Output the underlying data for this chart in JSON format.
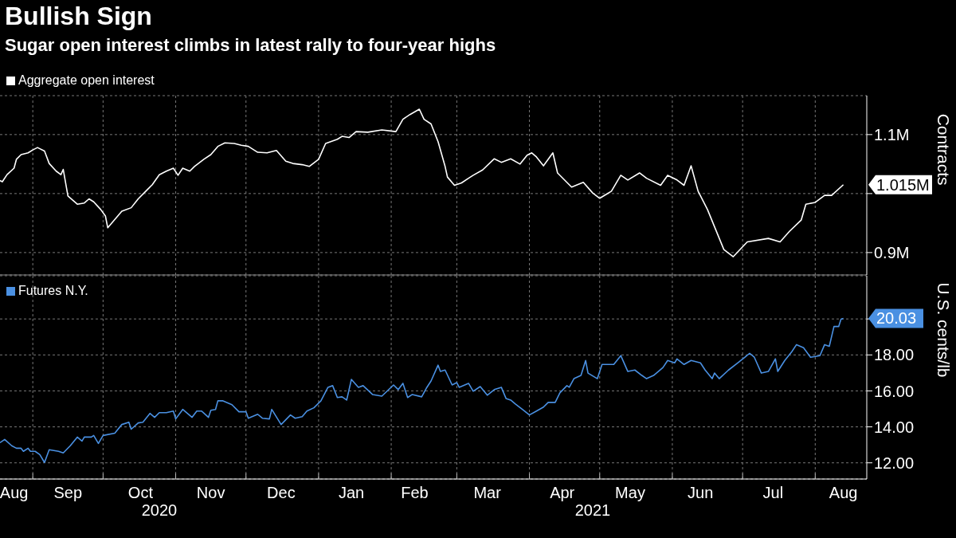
{
  "chart_data": [
    {
      "type": "line",
      "title": "Bullish Sign",
      "subtitle": "Sugar open interest climbs in latest rally to four-year highs",
      "ylabel": "Contracts",
      "legend": "top left",
      "grid": true,
      "tick_labels": "y",
      "xlim": [
        "2020-08-18",
        "2021-08-23"
      ],
      "xticks": [
        {
          "value": "2020-09-01",
          "label": null
        },
        {
          "value": "2020-10-01",
          "label": null
        },
        {
          "value": "2020-11-01",
          "label": null
        },
        {
          "value": "2020-12-01",
          "label": null
        },
        {
          "value": "2021-01-01",
          "label": null
        },
        {
          "value": "2021-02-01",
          "label": null
        },
        {
          "value": "2021-03-01",
          "label": null
        },
        {
          "value": "2021-04-01",
          "label": null
        },
        {
          "value": "2021-05-01",
          "label": null
        },
        {
          "value": "2021-06-01",
          "label": null
        },
        {
          "value": "2021-07-01",
          "label": null
        },
        {
          "value": "2021-08-01",
          "label": null
        }
      ],
      "ylim": [
        862000,
        1166000
      ],
      "yticks": [
        {
          "value": 900000,
          "label": "0.9M"
        },
        {
          "value": 1000000,
          "label": null
        },
        {
          "value": 1100000,
          "label": "1.1M"
        }
      ],
      "annotations": [
        {
          "text": "1.015M",
          "x": "2021-08-13",
          "y": 1015000
        }
      ],
      "series": [
        {
          "name": "Aggregate open interest",
          "color": "#ffffff",
          "x": [
            "2020-08-18",
            "2020-08-19",
            "2020-08-21",
            "2020-08-24",
            "2020-08-25",
            "2020-08-27",
            "2020-08-30",
            "2020-09-01",
            "2020-09-03",
            "2020-09-06",
            "2020-09-08",
            "2020-09-11",
            "2020-09-13",
            "2020-09-14",
            "2020-09-16",
            "2020-09-20",
            "2020-09-23",
            "2020-09-25",
            "2020-09-27",
            "2020-09-30",
            "2020-10-02",
            "2020-10-03",
            "2020-10-09",
            "2020-10-13",
            "2020-10-16",
            "2020-10-20",
            "2020-10-22",
            "2020-10-25",
            "2020-10-28",
            "2020-10-31",
            "2020-11-02",
            "2020-11-04",
            "2020-11-07",
            "2020-11-09",
            "2020-11-13",
            "2020-11-16",
            "2020-11-19",
            "2020-11-22",
            "2020-11-26",
            "2020-11-29",
            "2020-12-02",
            "2020-12-06",
            "2020-12-10",
            "2020-12-14",
            "2020-12-18",
            "2020-12-21",
            "2020-12-25",
            "2020-12-28",
            "2021-01-01",
            "2021-01-04",
            "2021-01-09",
            "2021-01-11",
            "2021-01-14",
            "2021-01-17",
            "2021-01-22",
            "2021-01-28",
            "2021-02-03",
            "2021-02-06",
            "2021-02-09",
            "2021-02-13",
            "2021-02-15",
            "2021-02-18",
            "2021-02-21",
            "2021-02-24",
            "2021-02-25",
            "2021-02-28",
            "2021-03-03",
            "2021-03-06",
            "2021-03-08",
            "2021-03-12",
            "2021-03-17",
            "2021-03-20",
            "2021-03-24",
            "2021-03-28",
            "2021-03-31",
            "2021-04-02",
            "2021-04-04",
            "2021-04-07",
            "2021-04-11",
            "2021-04-13",
            "2021-04-19",
            "2021-04-24",
            "2021-04-28",
            "2021-05-01",
            "2021-05-06",
            "2021-05-10",
            "2021-05-13",
            "2021-05-18",
            "2021-05-21",
            "2021-05-27",
            "2021-05-30",
            "2021-06-03",
            "2021-06-06",
            "2021-06-09",
            "2021-06-12",
            "2021-06-16",
            "2021-06-23",
            "2021-06-27",
            "2021-07-03",
            "2021-07-12",
            "2021-07-17",
            "2021-07-21",
            "2021-07-26",
            "2021-07-28",
            "2021-08-01",
            "2021-08-05",
            "2021-08-08",
            "2021-08-13"
          ],
          "values": [
            1022000,
            1020000,
            1032000,
            1043000,
            1058000,
            1066000,
            1069000,
            1074000,
            1078000,
            1072000,
            1051000,
            1038000,
            1032000,
            1041000,
            996000,
            982000,
            984000,
            991000,
            986000,
            973000,
            962000,
            942000,
            970000,
            976000,
            991000,
            1007000,
            1015000,
            1032000,
            1038000,
            1043000,
            1031000,
            1043000,
            1038000,
            1046000,
            1058000,
            1066000,
            1080000,
            1086000,
            1085000,
            1082000,
            1080000,
            1070000,
            1069000,
            1073000,
            1055000,
            1051000,
            1049000,
            1046000,
            1058000,
            1085000,
            1092000,
            1097000,
            1095000,
            1105000,
            1104000,
            1108000,
            1105000,
            1126000,
            1134000,
            1143000,
            1126000,
            1118000,
            1088000,
            1046000,
            1028000,
            1014000,
            1018000,
            1026000,
            1031000,
            1040000,
            1059000,
            1053000,
            1059000,
            1050000,
            1065000,
            1069000,
            1062000,
            1047000,
            1069000,
            1035000,
            1011000,
            1019000,
            1001000,
            992000,
            1004000,
            1031000,
            1023000,
            1035000,
            1026000,
            1014000,
            1031000,
            1023000,
            1014000,
            1047000,
            1004000,
            973000,
            905000,
            893000,
            918000,
            924000,
            918000,
            936000,
            955000,
            982000,
            985000,
            997000,
            997000,
            1015000
          ]
        }
      ]
    },
    {
      "type": "line",
      "ylabel": "U.S. cents/lb",
      "legend": "top left",
      "grid": true,
      "xlim": [
        "2020-08-18",
        "2021-08-23"
      ],
      "xticks": [
        {
          "value": "2020-08-24",
          "label": "Aug"
        },
        {
          "value": "2020-09-01",
          "label": null
        },
        {
          "value": "2020-09-16",
          "label": "Sep"
        },
        {
          "value": "2020-10-01",
          "label": null
        },
        {
          "value": "2020-10-17",
          "label": "Oct"
        },
        {
          "value": "2020-11-01",
          "label": null
        },
        {
          "value": "2020-11-16",
          "label": "Nov"
        },
        {
          "value": "2020-12-01",
          "label": null
        },
        {
          "value": "2020-12-16",
          "label": "Dec"
        },
        {
          "value": "2021-01-01",
          "label": null
        },
        {
          "value": "2021-01-15",
          "label": "Jan"
        },
        {
          "value": "2021-02-01",
          "label": null
        },
        {
          "value": "2021-02-11",
          "label": "Feb"
        },
        {
          "value": "2021-03-01",
          "label": null
        },
        {
          "value": "2021-03-14",
          "label": "Mar"
        },
        {
          "value": "2021-04-01",
          "label": null
        },
        {
          "value": "2021-04-15",
          "label": "Apr"
        },
        {
          "value": "2021-05-01",
          "label": null
        },
        {
          "value": "2021-05-14",
          "label": "May"
        },
        {
          "value": "2021-06-01",
          "label": null
        },
        {
          "value": "2021-06-13",
          "label": "Jun"
        },
        {
          "value": "2021-07-01",
          "label": null
        },
        {
          "value": "2021-07-14",
          "label": "Jul"
        },
        {
          "value": "2021-08-01",
          "label": null
        },
        {
          "value": "2021-08-13",
          "label": "Aug"
        }
      ],
      "ylim": [
        11.1,
        22.4
      ],
      "yticks": [
        {
          "value": 12,
          "label": "12.00"
        },
        {
          "value": 14,
          "label": "14.00"
        },
        {
          "value": 16,
          "label": "16.00"
        },
        {
          "value": 18,
          "label": "18.00"
        },
        {
          "value": 20,
          "label": null
        }
      ],
      "annotations": [
        {
          "text": "20.03",
          "x": "2021-08-13",
          "y": 20.03
        },
        "2020",
        "2021"
      ],
      "series": [
        {
          "name": "Futures N.Y.",
          "color": "#4a90e2",
          "x": [
            "2020-08-18",
            "2020-08-20",
            "2020-08-23",
            "2020-08-25",
            "2020-08-27",
            "2020-08-28",
            "2020-08-30",
            "2020-08-31",
            "2020-09-02",
            "2020-09-04",
            "2020-09-06",
            "2020-09-08",
            "2020-09-12",
            "2020-09-14",
            "2020-09-17",
            "2020-09-20",
            "2020-09-22",
            "2020-09-23",
            "2020-09-26",
            "2020-09-27",
            "2020-09-29",
            "2020-10-01",
            "2020-10-06",
            "2020-10-09",
            "2020-10-12",
            "2020-10-13",
            "2020-10-16",
            "2020-10-18",
            "2020-10-21",
            "2020-10-23",
            "2020-10-25",
            "2020-10-28",
            "2020-10-31",
            "2020-11-01",
            "2020-11-04",
            "2020-11-08",
            "2020-11-10",
            "2020-11-12",
            "2020-11-15",
            "2020-11-16",
            "2020-11-18",
            "2020-11-19",
            "2020-11-21",
            "2020-11-25",
            "2020-11-28",
            "2020-12-01",
            "2020-12-02",
            "2020-12-06",
            "2020-12-08",
            "2020-12-11",
            "2020-12-12",
            "2020-12-16",
            "2020-12-20",
            "2020-12-22",
            "2020-12-25",
            "2020-12-27",
            "2020-12-30",
            "2021-01-02",
            "2021-01-05",
            "2021-01-07",
            "2021-01-09",
            "2021-01-11",
            "2021-01-13",
            "2021-01-15",
            "2021-01-18",
            "2021-01-20",
            "2021-01-24",
            "2021-01-28",
            "2021-02-02",
            "2021-02-04",
            "2021-02-06",
            "2021-02-08",
            "2021-02-10",
            "2021-02-14",
            "2021-02-16",
            "2021-02-18",
            "2021-02-21",
            "2021-02-22",
            "2021-02-24",
            "2021-02-27",
            "2021-03-01",
            "2021-03-02",
            "2021-03-06",
            "2021-03-08",
            "2021-03-11",
            "2021-03-14",
            "2021-03-17",
            "2021-03-20",
            "2021-03-22",
            "2021-03-24",
            "2021-03-26",
            "2021-03-29",
            "2021-04-01",
            "2021-04-04",
            "2021-04-07",
            "2021-04-09",
            "2021-04-12",
            "2021-04-14",
            "2021-04-17",
            "2021-04-18",
            "2021-04-20",
            "2021-04-23",
            "2021-04-25",
            "2021-04-26",
            "2021-04-30",
            "2021-05-02",
            "2021-05-07",
            "2021-05-10",
            "2021-05-13",
            "2021-05-16",
            "2021-05-19",
            "2021-05-21",
            "2021-05-24",
            "2021-05-28",
            "2021-05-30",
            "2021-06-02",
            "2021-06-03",
            "2021-06-06",
            "2021-06-09",
            "2021-06-13",
            "2021-06-15",
            "2021-06-18",
            "2021-06-19",
            "2021-06-21",
            "2021-06-25",
            "2021-06-29",
            "2021-07-02",
            "2021-07-04",
            "2021-07-06",
            "2021-07-09",
            "2021-07-12",
            "2021-07-15",
            "2021-07-16",
            "2021-07-19",
            "2021-07-22",
            "2021-07-24",
            "2021-07-27",
            "2021-07-30",
            "2021-08-03",
            "2021-08-05",
            "2021-08-07",
            "2021-08-09",
            "2021-08-11",
            "2021-08-12",
            "2021-08-13"
          ],
          "values": [
            13.12,
            13.3,
            12.95,
            12.81,
            12.81,
            12.64,
            12.81,
            12.64,
            12.64,
            12.46,
            12.02,
            12.73,
            12.64,
            12.55,
            12.95,
            13.43,
            13.21,
            13.43,
            13.43,
            13.52,
            13.08,
            13.52,
            13.65,
            14.13,
            14.26,
            13.87,
            14.22,
            14.26,
            14.75,
            14.53,
            14.79,
            14.79,
            14.88,
            14.44,
            14.97,
            14.53,
            14.88,
            14.88,
            14.53,
            14.92,
            14.97,
            15.45,
            15.45,
            15.23,
            14.84,
            14.84,
            14.48,
            14.7,
            14.48,
            14.44,
            14.97,
            14.13,
            14.66,
            14.48,
            14.57,
            14.88,
            15.06,
            15.45,
            16.2,
            16.29,
            15.63,
            15.67,
            15.49,
            16.64,
            16.2,
            16.29,
            15.8,
            15.71,
            16.33,
            16.07,
            16.42,
            15.63,
            15.8,
            15.67,
            16.15,
            16.55,
            17.43,
            17.08,
            17.16,
            16.33,
            16.46,
            16.2,
            16.42,
            15.98,
            16.24,
            15.76,
            16.07,
            16.2,
            15.58,
            15.49,
            15.27,
            14.97,
            14.66,
            14.88,
            15.1,
            15.36,
            15.36,
            15.89,
            16.29,
            16.2,
            16.68,
            16.86,
            17.69,
            16.99,
            16.68,
            17.47,
            17.47,
            17.96,
            17.08,
            17.16,
            16.86,
            16.68,
            16.86,
            17.3,
            17.69,
            17.56,
            17.78,
            17.47,
            17.69,
            17.56,
            17.16,
            16.68,
            16.99,
            16.68,
            17.16,
            17.56,
            17.87,
            18.09,
            17.87,
            16.99,
            17.08,
            17.78,
            17.08,
            17.69,
            18.18,
            18.57,
            18.4,
            17.87,
            17.96,
            18.57,
            18.48,
            19.58,
            19.58,
            19.98,
            20.03
          ]
        }
      ]
    }
  ]
}
